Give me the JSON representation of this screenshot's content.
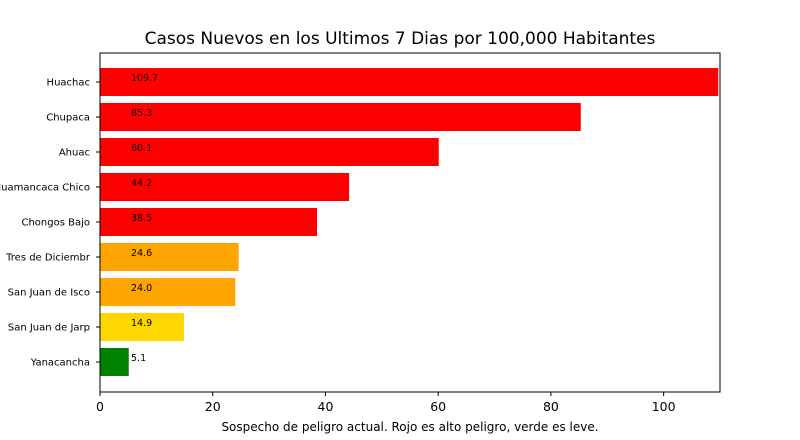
{
  "chart_data": {
    "type": "bar",
    "orientation": "horizontal",
    "title": "Casos Nuevos en los Ultimos 7 Dias por 100,000 Habitantes",
    "xlabel": "Sospecho de peligro actual. Rojo es alto peligro, verde es leve.",
    "ylabel": "",
    "xlim": [
      0,
      110
    ],
    "xticks": [
      0,
      20,
      40,
      60,
      80,
      100
    ],
    "grid": false,
    "categories": [
      "Huachac",
      "Chupaca",
      "Ahuac",
      "Huamancaca Chico",
      "Chongos Bajo",
      "Tres de Diciembr",
      "San Juan de Isco",
      "San Juan de Jarp",
      "Yanacancha"
    ],
    "values": [
      109.7,
      85.3,
      60.1,
      44.2,
      38.5,
      24.6,
      24.0,
      14.9,
      5.1
    ],
    "value_labels": [
      "109.7",
      "85.3",
      "60.1",
      "44.2",
      "38.5",
      "24.6",
      "24.0",
      "14.9",
      "5.1"
    ],
    "colors": [
      "#ff0000",
      "#ff0000",
      "#ff0000",
      "#ff0000",
      "#ff0000",
      "#ffa500",
      "#ffa500",
      "#ffd700",
      "#008000"
    ]
  }
}
